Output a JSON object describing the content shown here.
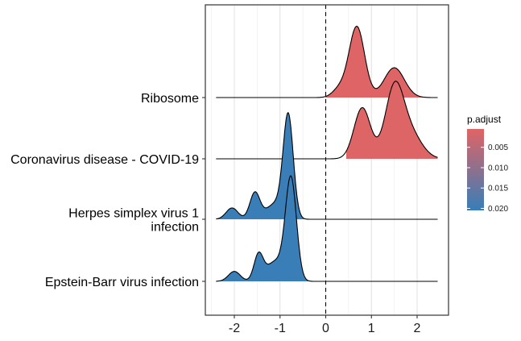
{
  "chart_data": {
    "type": "area",
    "subtype": "ridgeline",
    "title": "",
    "xlabel": "",
    "ylabel": "",
    "xlim": [
      -2.6,
      2.5
    ],
    "x_ticks": [
      -2,
      -1,
      0,
      1,
      2
    ],
    "x_tick_labels": [
      "-2",
      "-1",
      "0",
      "1",
      "2"
    ],
    "reference_line": {
      "x": 0,
      "style": "dashed"
    },
    "grid": true,
    "colors": {
      "low_p": "#e06464",
      "high_p": "#377eb8"
    },
    "legend": {
      "title": "p.adjust",
      "placement": "right",
      "labels": [
        "0.005",
        "0.010",
        "0.015",
        "0.020"
      ],
      "range": [
        0.0005,
        0.0205
      ]
    },
    "series": [
      {
        "name": "Ribosome",
        "p_adjust": 0.0007,
        "x_range": [
          -2.4,
          2.45
        ],
        "fill_from": 0.0,
        "peaks": [
          {
            "center": 0.68,
            "sd": 0.17,
            "amp": 1.0
          },
          {
            "center": 1.5,
            "sd": 0.22,
            "amp": 0.42
          },
          {
            "center": 0.3,
            "sd": 0.15,
            "amp": 0.12
          }
        ]
      },
      {
        "name": "Coronavirus disease - COVID-19",
        "p_adjust": 0.0009,
        "x_range": [
          -2.4,
          2.45
        ],
        "fill_from": 0.45,
        "peaks": [
          {
            "center": 0.8,
            "sd": 0.18,
            "amp": 0.72
          },
          {
            "center": 1.5,
            "sd": 0.2,
            "amp": 0.95
          },
          {
            "center": 1.85,
            "sd": 0.25,
            "amp": 0.35
          }
        ]
      },
      {
        "name": "Herpes simplex virus 1\ninfection",
        "p_adjust": 0.0203,
        "x_range": [
          -2.4,
          2.45
        ],
        "fill_to": -0.3,
        "peaks": [
          {
            "center": -0.82,
            "sd": 0.11,
            "amp": 1.42
          },
          {
            "center": -1.55,
            "sd": 0.11,
            "amp": 0.37
          },
          {
            "center": -2.05,
            "sd": 0.13,
            "amp": 0.16
          },
          {
            "center": -1.1,
            "sd": 0.2,
            "amp": 0.22
          }
        ]
      },
      {
        "name": "Epstein-Barr virus infection",
        "p_adjust": 0.0203,
        "x_range": [
          -2.4,
          2.45
        ],
        "fill_to": -0.25,
        "peaks": [
          {
            "center": -0.76,
            "sd": 0.12,
            "amp": 1.42
          },
          {
            "center": -1.47,
            "sd": 0.1,
            "amp": 0.36
          },
          {
            "center": -2.0,
            "sd": 0.13,
            "amp": 0.14
          },
          {
            "center": -1.1,
            "sd": 0.2,
            "amp": 0.28
          }
        ]
      }
    ]
  }
}
